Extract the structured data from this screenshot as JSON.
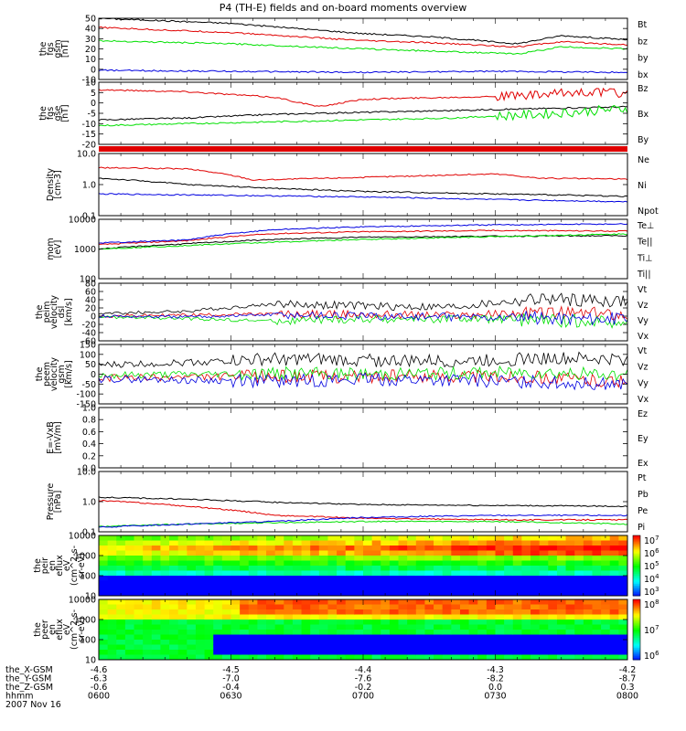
{
  "title": "P4 (TH-E) fields and on-board moments overview",
  "colors": {
    "black": "#000000",
    "red": "#e00000",
    "green": "#00e000",
    "blue": "#0000e0"
  },
  "chart_data": [
    {
      "type": "line",
      "ylabel_lines": [
        "the",
        "fgs",
        "gsm",
        "[nT]"
      ],
      "ylim": [
        -10,
        50
      ],
      "yticks": [
        "50",
        "40",
        "30",
        "20",
        "10",
        "0",
        "-10"
      ],
      "legend": [
        {
          "name": "Bt",
          "color": "black"
        },
        {
          "name": "bz",
          "color": "red"
        },
        {
          "name": "by",
          "color": "green"
        },
        {
          "name": "bx",
          "color": "blue"
        }
      ],
      "series": [
        {
          "name": "Bt",
          "color": "black",
          "x": [
            0,
            30,
            60,
            75,
            95,
            105,
            120
          ],
          "y": [
            50,
            45,
            35,
            32,
            25,
            33,
            29
          ]
        },
        {
          "name": "bz",
          "color": "red",
          "x": [
            0,
            30,
            60,
            75,
            95,
            105,
            120
          ],
          "y": [
            41,
            36,
            28,
            26,
            22,
            27,
            24
          ]
        },
        {
          "name": "by",
          "color": "green",
          "x": [
            0,
            30,
            60,
            75,
            95,
            105,
            120
          ],
          "y": [
            28,
            25,
            20,
            18,
            15,
            22,
            20
          ]
        },
        {
          "name": "bx",
          "color": "blue",
          "x": [
            0,
            30,
            60,
            90,
            120
          ],
          "y": [
            -1,
            -2,
            -3,
            -2,
            -3
          ]
        }
      ]
    },
    {
      "type": "line",
      "ylabel_lines": [
        "the",
        "fgs",
        "gse",
        "[nT]"
      ],
      "ylim": [
        -22,
        11
      ],
      "yticks": [
        "10",
        "5",
        "0",
        "-5",
        "-10",
        "-15",
        "-20"
      ],
      "legend": [
        {
          "name": "Bz",
          "color": "red"
        },
        {
          "name": "Bx",
          "color": "black"
        },
        {
          "name": "By",
          "color": "green"
        }
      ],
      "series": [
        {
          "name": "Bz",
          "color": "red",
          "x": [
            0,
            20,
            40,
            50,
            60,
            80,
            100,
            110,
            120
          ],
          "y": [
            7,
            6,
            3,
            -2,
            2,
            3,
            4,
            6,
            5
          ]
        },
        {
          "name": "Bx",
          "color": "black",
          "x": [
            0,
            20,
            40,
            60,
            80,
            100,
            120
          ],
          "y": [
            -9,
            -8,
            -6,
            -5,
            -4,
            -3,
            -2
          ]
        },
        {
          "name": "By",
          "color": "green",
          "x": [
            0,
            20,
            40,
            60,
            80,
            100,
            120
          ],
          "y": [
            -12,
            -11,
            -10,
            -9,
            -8,
            -6,
            -3
          ]
        }
      ]
    },
    {
      "type": "line",
      "ylabel_lines": [
        "Density",
        "[cm-3]"
      ],
      "scale": "log",
      "ylim": [
        0.1,
        10
      ],
      "yticks": [
        "10.0",
        "1.0",
        "0.1"
      ],
      "legend": [
        {
          "name": "Ne",
          "color": "red"
        },
        {
          "name": "Ni",
          "color": "black"
        },
        {
          "name": "Npot",
          "color": "blue"
        }
      ],
      "series": [
        {
          "name": "Ne",
          "color": "red",
          "x": [
            0,
            20,
            35,
            60,
            90,
            100,
            120
          ],
          "y": [
            3.5,
            3.2,
            1.4,
            1.7,
            2.2,
            1.6,
            1.5
          ]
        },
        {
          "name": "Ni",
          "color": "black",
          "x": [
            0,
            20,
            40,
            60,
            90,
            120
          ],
          "y": [
            1.6,
            1.0,
            0.75,
            0.6,
            0.5,
            0.42
          ]
        },
        {
          "name": "Npot",
          "color": "blue",
          "x": [
            0,
            30,
            60,
            90,
            120
          ],
          "y": [
            0.5,
            0.45,
            0.4,
            0.33,
            0.28
          ]
        }
      ]
    },
    {
      "type": "line",
      "ylabel_lines": [
        "mom",
        "[eV]"
      ],
      "scale": "log",
      "ylim": [
        100,
        10000
      ],
      "yticks": [
        "10000",
        "1000",
        "100"
      ],
      "legend": [
        {
          "name": "Te⊥",
          "color": "red"
        },
        {
          "name": "Te||",
          "color": "black"
        },
        {
          "name": "Ti⊥",
          "color": "blue"
        },
        {
          "name": "Ti||",
          "color": "green"
        }
      ],
      "series": [
        {
          "name": "Te⊥",
          "color": "red",
          "x": [
            0,
            20,
            40,
            60,
            90,
            120
          ],
          "y": [
            1400,
            1900,
            3300,
            3800,
            4200,
            4000
          ]
        },
        {
          "name": "Te||",
          "color": "black",
          "x": [
            0,
            20,
            40,
            60,
            90,
            120
          ],
          "y": [
            1000,
            1500,
            2100,
            2500,
            2700,
            2800
          ]
        },
        {
          "name": "Ti⊥",
          "color": "blue",
          "x": [
            0,
            20,
            40,
            60,
            90,
            120
          ],
          "y": [
            1600,
            2000,
            4500,
            5600,
            6500,
            7000
          ]
        },
        {
          "name": "Ti||",
          "color": "green",
          "x": [
            0,
            20,
            40,
            60,
            90,
            120
          ],
          "y": [
            1000,
            1300,
            1700,
            2100,
            2600,
            3200
          ]
        }
      ]
    },
    {
      "type": "line",
      "ylabel_lines": [
        "the",
        "peim",
        "velocity",
        "dsl",
        "[km/s]"
      ],
      "ylim": [
        -60,
        80
      ],
      "yticks": [
        "80",
        "60",
        "40",
        "20",
        "0",
        "-20",
        "-40",
        "-60"
      ],
      "legend": [
        {
          "name": "Vt",
          "color": "black"
        },
        {
          "name": "Vz",
          "color": "red"
        },
        {
          "name": "Vy",
          "color": "green"
        },
        {
          "name": "Vx",
          "color": "blue"
        }
      ],
      "series": [
        {
          "name": "Vt",
          "color": "black",
          "x": [
            0,
            20,
            40,
            60,
            80,
            100,
            120
          ],
          "y": [
            6,
            12,
            30,
            25,
            22,
            42,
            36
          ]
        },
        {
          "name": "Vz",
          "color": "red",
          "x": [
            0,
            20,
            40,
            60,
            80,
            100,
            120
          ],
          "y": [
            0,
            3,
            5,
            4,
            2,
            8,
            5
          ]
        },
        {
          "name": "Vy",
          "color": "green",
          "x": [
            0,
            20,
            40,
            60,
            80,
            100,
            120
          ],
          "y": [
            -2,
            -6,
            -12,
            -8,
            -6,
            -10,
            -14
          ]
        },
        {
          "name": "Vx",
          "color": "blue",
          "x": [
            0,
            20,
            40,
            60,
            80,
            100,
            120
          ],
          "y": [
            0,
            -2,
            4,
            0,
            -2,
            -4,
            -6
          ]
        }
      ]
    },
    {
      "type": "line",
      "ylabel_lines": [
        "the",
        "peem",
        "velocity",
        "gsm",
        "[km/s]"
      ],
      "ylim": [
        -150,
        150
      ],
      "yticks": [
        "150",
        "100",
        "50",
        "0",
        "-50",
        "-100",
        "-150"
      ],
      "legend": [
        {
          "name": "Vt",
          "color": "black"
        },
        {
          "name": "Vz",
          "color": "red"
        },
        {
          "name": "Vy",
          "color": "green"
        },
        {
          "name": "Vx",
          "color": "blue"
        }
      ],
      "series": [
        {
          "name": "Vt",
          "color": "black",
          "x": [
            0,
            20,
            40,
            60,
            80,
            100,
            120
          ],
          "y": [
            45,
            60,
            75,
            70,
            65,
            80,
            75
          ]
        },
        {
          "name": "Vz",
          "color": "red",
          "x": [
            0,
            20,
            40,
            60,
            80,
            100,
            120
          ],
          "y": [
            -20,
            -15,
            -10,
            -12,
            -8,
            -15,
            -40
          ]
        },
        {
          "name": "Vy",
          "color": "green",
          "x": [
            0,
            20,
            40,
            60,
            80,
            100,
            120
          ],
          "y": [
            -5,
            0,
            5,
            0,
            5,
            10,
            -5
          ]
        },
        {
          "name": "Vx",
          "color": "blue",
          "x": [
            0,
            20,
            40,
            60,
            80,
            100,
            120
          ],
          "y": [
            -25,
            -30,
            -35,
            -25,
            -30,
            -40,
            -50
          ]
        }
      ]
    },
    {
      "type": "line",
      "ylabel_lines": [
        "E=-VxB",
        "[mV/m]"
      ],
      "ylim": [
        0,
        1
      ],
      "yticks": [
        "1.0",
        "0.8",
        "0.6",
        "0.4",
        "0.2",
        "0.0"
      ],
      "legend": [
        {
          "name": "Ez",
          "color": "red"
        },
        {
          "name": "Ey",
          "color": "green"
        },
        {
          "name": "Ex",
          "color": "blue"
        }
      ],
      "series": []
    },
    {
      "type": "line",
      "ylabel_lines": [
        "Pressure",
        "[nPa]"
      ],
      "scale": "log",
      "ylim": [
        0.1,
        10
      ],
      "yticks": [
        "10.0",
        "1.0",
        "0.1"
      ],
      "legend": [
        {
          "name": "Pt",
          "color": "black"
        },
        {
          "name": "Pb",
          "color": "red"
        },
        {
          "name": "Pe",
          "color": "green"
        },
        {
          "name": "Pi",
          "color": "blue"
        }
      ],
      "series": [
        {
          "name": "Pt",
          "color": "black",
          "x": [
            0,
            20,
            40,
            60,
            90,
            120
          ],
          "y": [
            1.4,
            1.2,
            0.95,
            0.8,
            0.75,
            0.7
          ]
        },
        {
          "name": "Pb",
          "color": "red",
          "x": [
            0,
            20,
            40,
            60,
            90,
            120
          ],
          "y": [
            1.1,
            0.7,
            0.35,
            0.28,
            0.25,
            0.25
          ]
        },
        {
          "name": "Pe",
          "color": "green",
          "x": [
            0,
            20,
            40,
            60,
            90,
            120
          ],
          "y": [
            0.15,
            0.18,
            0.2,
            0.22,
            0.22,
            0.18
          ]
        },
        {
          "name": "Pi",
          "color": "blue",
          "x": [
            0,
            20,
            40,
            60,
            90,
            120
          ],
          "y": [
            0.14,
            0.18,
            0.22,
            0.3,
            0.35,
            0.35
          ]
        }
      ]
    },
    {
      "type": "heatmap",
      "ylabel_lines": [
        "the",
        "peir",
        "en",
        "eflux",
        "eV",
        "(cm^2-s-",
        "sr-eV)"
      ],
      "scale": "log",
      "ylim": [
        7,
        20000
      ],
      "yticks": [
        "10000",
        "1000",
        "100",
        "10"
      ],
      "colorbar": {
        "ticks": [
          "10^7",
          "10^6",
          "10^5",
          "10^4",
          "10^3"
        ]
      }
    },
    {
      "type": "heatmap",
      "ylabel_lines": [
        "the",
        "peer",
        "en",
        "eflux",
        "eV",
        "(cm^2-s-",
        "sr-eV)"
      ],
      "scale": "log",
      "ylim": [
        7,
        20000
      ],
      "yticks": [
        "10000",
        "1000",
        "100",
        "10"
      ],
      "colorbar": {
        "ticks": [
          "10^8",
          "10^7",
          "10^6"
        ]
      }
    }
  ],
  "xaxis": {
    "rows": [
      {
        "label": "the_X-GSM",
        "values": [
          "-4.6",
          "-4.5",
          "-4.4",
          "-4.3",
          "-4.2"
        ]
      },
      {
        "label": "the_Y-GSM",
        "values": [
          "-6.3",
          "-7.0",
          "-7.6",
          "-8.2",
          "-8.7"
        ]
      },
      {
        "label": "the_Z-GSM",
        "values": [
          "-0.6",
          "-0.4",
          "-0.2",
          "0.0",
          "0.3"
        ]
      },
      {
        "label": "hhmm",
        "values": [
          "0600",
          "0630",
          "0700",
          "0730",
          "0800"
        ]
      }
    ],
    "date": "2007 Nov 16"
  }
}
